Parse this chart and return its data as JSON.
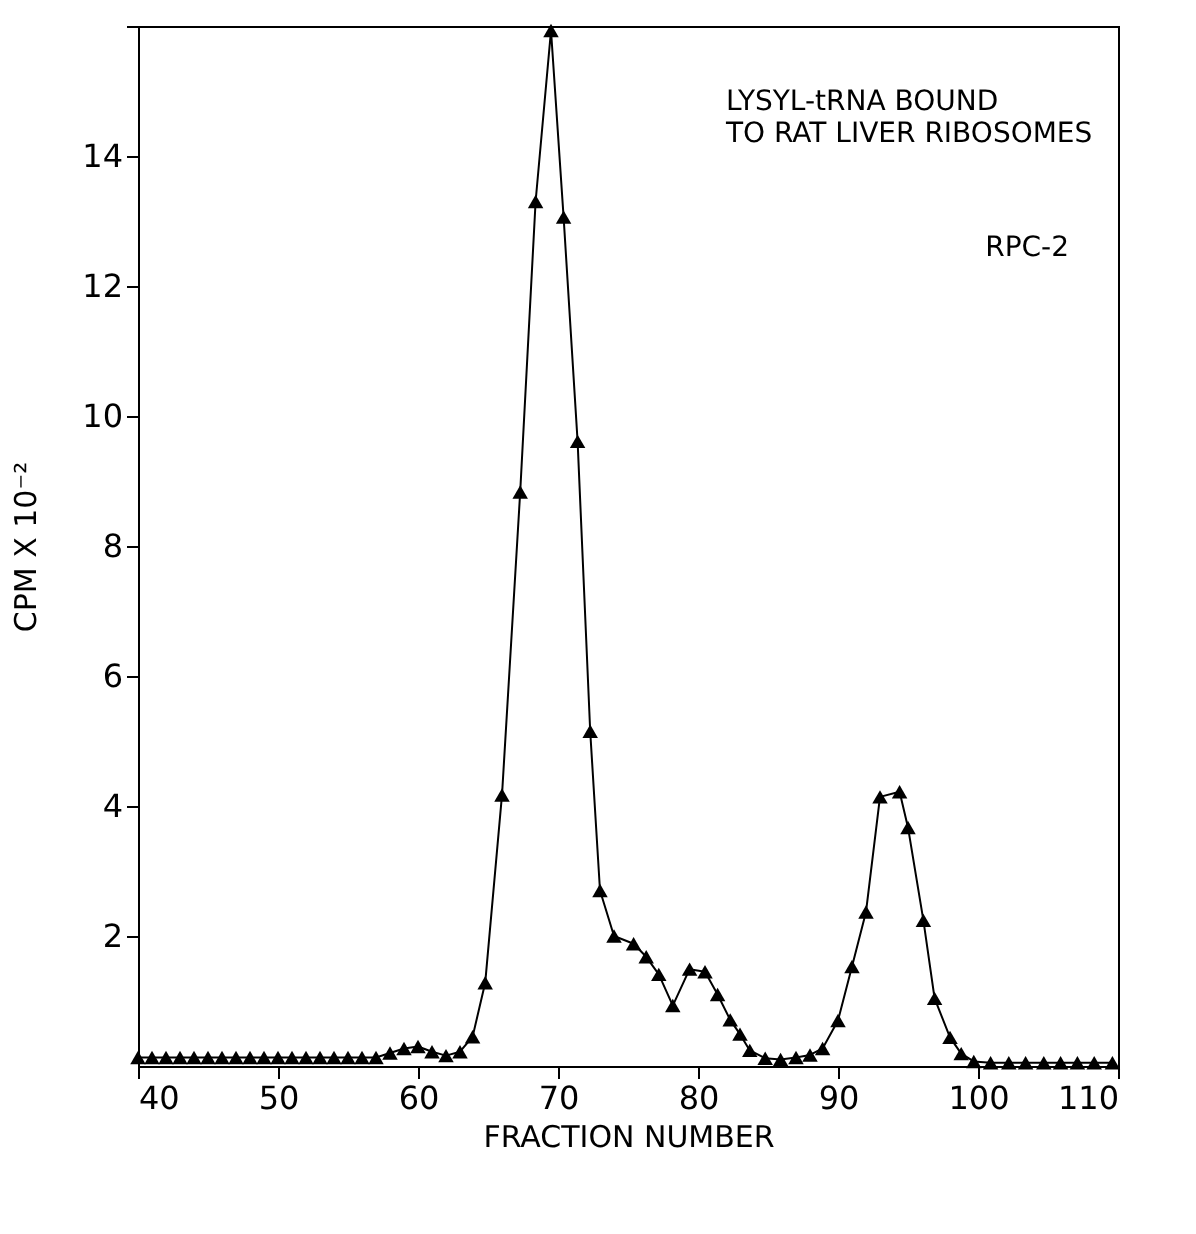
{
  "chart_data": {
    "type": "line",
    "xlabel": "FRACTION NUMBER",
    "ylabel": "CPM X 10⁻²",
    "annotations": [
      "LYSYL-tRNA BOUND\nTO RAT LIVER RIBOSOMES",
      "RPC-2"
    ],
    "x": [
      40,
      41,
      42,
      43,
      44,
      45,
      46,
      47,
      48,
      49,
      50,
      51,
      52,
      53,
      54,
      55,
      56,
      57,
      58,
      59,
      60,
      61,
      62,
      63,
      63.9,
      64.8,
      66.0,
      67.3,
      68.4,
      69.5,
      70.4,
      71.4,
      72.3,
      73.0,
      74.0,
      75.4,
      76.3,
      77.2,
      78.2,
      79.4,
      80.5,
      81.4,
      82.3,
      83.0,
      83.7,
      84.8,
      85.9,
      87.0,
      88.0,
      88.9,
      90.0,
      91.0,
      92.0,
      93.0,
      94.4,
      95.0,
      96.1,
      96.9,
      98.0,
      98.8,
      99.7,
      100.9,
      102.2,
      103.4,
      104.7,
      105.9,
      107.1,
      108.3,
      109.6
    ],
    "series": [
      {
        "color": "#000000",
        "values": [
          0.13,
          0.13,
          0.13,
          0.13,
          0.13,
          0.13,
          0.13,
          0.13,
          0.13,
          0.13,
          0.13,
          0.13,
          0.13,
          0.13,
          0.13,
          0.13,
          0.13,
          0.13,
          0.2,
          0.27,
          0.3,
          0.22,
          0.16,
          0.22,
          0.45,
          1.28,
          4.17,
          8.83,
          13.3,
          15.93,
          13.06,
          9.61,
          5.15,
          2.7,
          2.0,
          1.88,
          1.68,
          1.41,
          0.93,
          1.49,
          1.45,
          1.1,
          0.71,
          0.49,
          0.24,
          0.12,
          0.1,
          0.13,
          0.17,
          0.27,
          0.7,
          1.53,
          2.37,
          4.14,
          4.22,
          3.67,
          2.24,
          1.04,
          0.44,
          0.19,
          0.07,
          0.05,
          0.05,
          0.05,
          0.05,
          0.05,
          0.05,
          0.05,
          0.05
        ]
      }
    ],
    "xlim": [
      40,
      110
    ],
    "xticks": [
      40,
      50,
      60,
      70,
      80,
      90,
      100,
      110
    ],
    "ylim": [
      0,
      16
    ],
    "yticks": [
      2,
      4,
      6,
      8,
      10,
      12,
      14,
      {
        "value": 16,
        "label": null
      }
    ],
    "grid": false,
    "marker": "triangle",
    "line_style": "solid"
  }
}
